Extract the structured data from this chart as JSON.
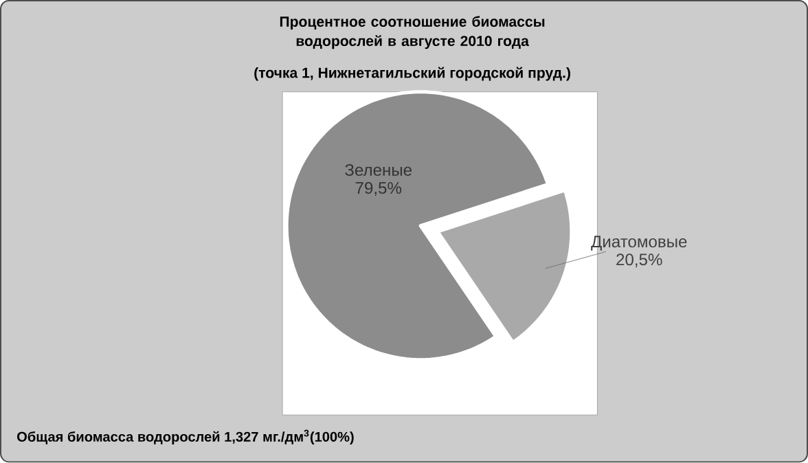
{
  "chart_data": {
    "type": "pie",
    "title": "Процентное соотношение биомассы водорослей в августе 2010 года",
    "subtitle": "(точка 1, Нижнетагильский городской пруд.)",
    "categories": [
      "Зеленые",
      "Диатомовые"
    ],
    "values": [
      79.5,
      20.5
    ],
    "value_labels": [
      "79,5%",
      "20,5%"
    ],
    "colors": [
      "#8c8c8c",
      "#a9a9a9"
    ],
    "annotations": [
      "Общая биомасса водорослей 1,327 мг./дм$^{3}$(100%)"
    ]
  }
}
